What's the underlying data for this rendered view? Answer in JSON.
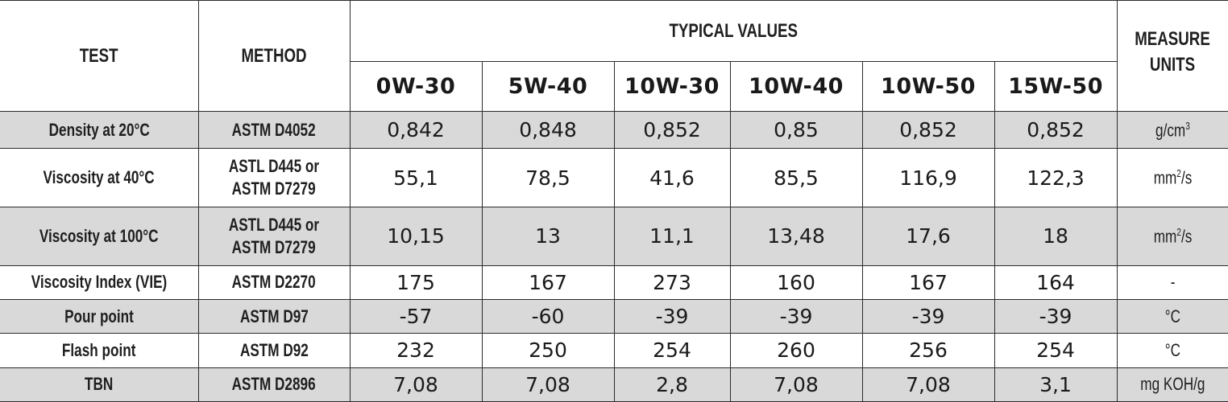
{
  "header": {
    "test": "TEST",
    "method": "METHOD",
    "typical_values": "TYPICAL VALUES",
    "measure_units_1": "MEASURE",
    "measure_units_2": "UNITS",
    "grades": [
      "0W-30",
      "5W-40",
      "10W-30",
      "10W-40",
      "10W-50",
      "15W-50"
    ]
  },
  "rows": [
    {
      "test": "Density at 20°C",
      "method": [
        "ASTM D4052"
      ],
      "values": [
        "0,842",
        "0,848",
        "0,852",
        "0,85",
        "0,852",
        "0,852"
      ],
      "unit_base": "g/cm",
      "unit_sup": "3",
      "unit_tail": "",
      "shaded": true
    },
    {
      "test": "Viscosity at 40°C",
      "method": [
        "ASTL D445 or",
        "ASTM D7279"
      ],
      "values": [
        "55,1",
        "78,5",
        "41,6",
        "85,5",
        "116,9",
        "122,3"
      ],
      "unit_base": "mm",
      "unit_sup": "2",
      "unit_tail": "/s",
      "shaded": false
    },
    {
      "test": "Viscosity at 100°C",
      "method": [
        "ASTL D445 or",
        "ASTM D7279"
      ],
      "values": [
        "10,15",
        "13",
        "11,1",
        "13,48",
        "17,6",
        "18"
      ],
      "unit_base": "mm",
      "unit_sup": "2",
      "unit_tail": "/s",
      "shaded": true
    },
    {
      "test": "Viscosity Index (VIE)",
      "method": [
        "ASTM D2270"
      ],
      "values": [
        "175",
        "167",
        "273",
        "160",
        "167",
        "164"
      ],
      "unit_base": "-",
      "unit_sup": "",
      "unit_tail": "",
      "shaded": false
    },
    {
      "test": "Pour point",
      "method": [
        "ASTM D97"
      ],
      "values": [
        "-57",
        "-60",
        "-39",
        "-39",
        "-39",
        "-39"
      ],
      "unit_base": "°C",
      "unit_sup": "",
      "unit_tail": "",
      "shaded": true
    },
    {
      "test": "Flash point",
      "method": [
        "ASTM D92"
      ],
      "values": [
        "232",
        "250",
        "254",
        "260",
        "256",
        "254"
      ],
      "unit_base": "°C",
      "unit_sup": "",
      "unit_tail": "",
      "shaded": false
    },
    {
      "test": "TBN",
      "method": [
        "ASTM D2896"
      ],
      "values": [
        "7,08",
        "7,08",
        "2,8",
        "7,08",
        "7,08",
        "3,1"
      ],
      "unit_base": "mg KOH/g",
      "unit_sup": "",
      "unit_tail": "",
      "shaded": true
    }
  ]
}
